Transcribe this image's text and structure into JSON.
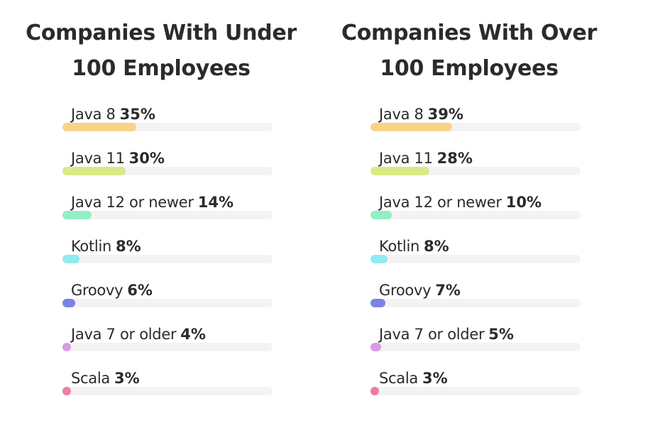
{
  "chart_data": [
    {
      "type": "bar",
      "orientation": "horizontal",
      "title": "Companies With Under 100 Employees",
      "title_lines": [
        "Companies With Under",
        "100 Employees"
      ],
      "categories": [
        "Java 8",
        "Java 11",
        "Java 12 or newer",
        "Kotlin",
        "Groovy",
        "Java 7 or older",
        "Scala"
      ],
      "values": [
        35,
        30,
        14,
        8,
        6,
        4,
        3
      ],
      "value_labels": [
        "35%",
        "30%",
        "14%",
        "8%",
        "6%",
        "4%",
        "3%"
      ],
      "unit": "%",
      "xlim": [
        0,
        100
      ],
      "grid": false,
      "legend": "none"
    },
    {
      "type": "bar",
      "orientation": "horizontal",
      "title": "Companies With Over 100 Employees",
      "title_lines": [
        "Companies With Over",
        "100 Employees"
      ],
      "categories": [
        "Java 8",
        "Java 11",
        "Java 12 or newer",
        "Kotlin",
        "Groovy",
        "Java 7 or older",
        "Scala"
      ],
      "values": [
        39,
        28,
        10,
        8,
        7,
        5,
        3
      ],
      "value_labels": [
        "39%",
        "28%",
        "10%",
        "8%",
        "7%",
        "5%",
        "3%"
      ],
      "unit": "%",
      "xlim": [
        0,
        100
      ],
      "grid": false,
      "legend": "none"
    }
  ],
  "colors": {
    "Java 8": "#f9d38a",
    "Java 11": "#d9ea86",
    "Java 12 or newer": "#92efc6",
    "Kotlin": "#8eecf0",
    "Groovy": "#7b83e6",
    "Java 7 or older": "#d79be8",
    "Scala": "#ef7d9d",
    "track": "#f3f3f3",
    "text": "#2b2b2b"
  }
}
